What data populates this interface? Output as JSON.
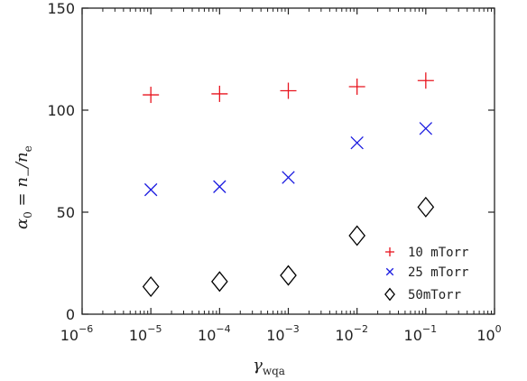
{
  "chart_data": {
    "type": "scatter",
    "xscale": "log",
    "xlim": [
      1e-06,
      1
    ],
    "ylim": [
      0,
      150
    ],
    "xticks": [
      {
        "value": 1e-06,
        "base": "10",
        "exp": "−6"
      },
      {
        "value": 1e-05,
        "base": "10",
        "exp": "−5"
      },
      {
        "value": 0.0001,
        "base": "10",
        "exp": "−4"
      },
      {
        "value": 0.001,
        "base": "10",
        "exp": "−3"
      },
      {
        "value": 0.01,
        "base": "10",
        "exp": "−2"
      },
      {
        "value": 0.1,
        "base": "10",
        "exp": "−1"
      },
      {
        "value": 1,
        "base": "10",
        "exp": "0"
      }
    ],
    "yticks": [
      0,
      50,
      100,
      150
    ],
    "ylabel": {
      "main": "α",
      "sub": "0",
      "mid": " = n",
      "sub2": "−",
      "slash": "/n",
      "sub3": "e"
    },
    "xlabel": {
      "main": "γ",
      "sub": "wqa"
    },
    "grid": false,
    "legend_position": "lower-right",
    "series": [
      {
        "name": "10 mTorr",
        "marker": "plus",
        "color": "#e8141e",
        "x": [
          1e-05,
          0.0001,
          0.001,
          0.01,
          0.1
        ],
        "y": [
          107.5,
          108,
          109.5,
          111.5,
          114.5
        ]
      },
      {
        "name": "25 mTorr",
        "marker": "x",
        "color": "#1a1ae0",
        "x": [
          1e-05,
          0.0001,
          0.001,
          0.01,
          0.1
        ],
        "y": [
          61,
          62.5,
          67,
          84,
          91
        ]
      },
      {
        "name": "50mTorr",
        "marker": "diamond",
        "color": "#000000",
        "x": [
          1e-05,
          0.0001,
          0.001,
          0.01,
          0.1
        ],
        "y": [
          13.5,
          16,
          19,
          38.5,
          52.5
        ]
      }
    ]
  }
}
